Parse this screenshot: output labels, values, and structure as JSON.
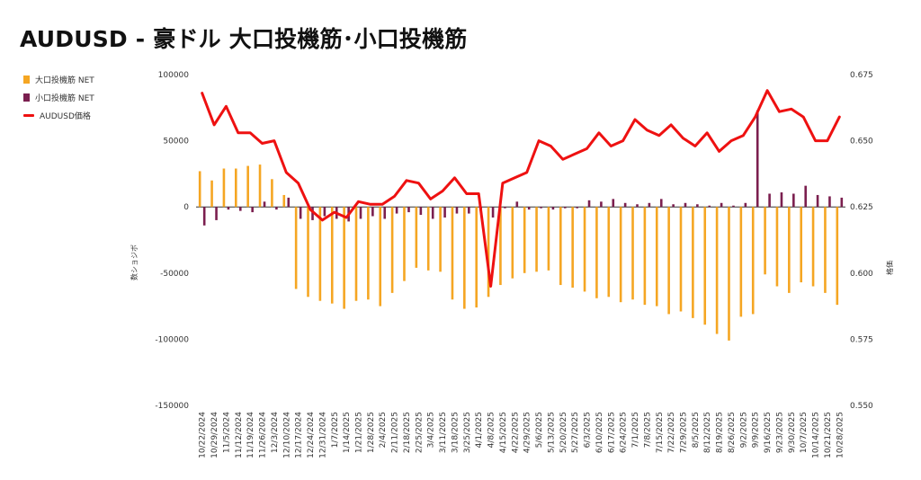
{
  "chart_data": {
    "type": "bar",
    "title": "AUDUSD - 豪ドル 大口投機筋･小口投機筋",
    "ylabel_left": "数ショジボ",
    "ylabel_right": "格価",
    "ylim_left": [
      -150000,
      100000
    ],
    "ylim_right": [
      0.55,
      0.675
    ],
    "yticks_left": [
      "100000",
      "50000",
      "0",
      "-50000",
      "-100000",
      "-150000"
    ],
    "yticks_right": [
      "0.675",
      "0.650",
      "0.625",
      "0.600",
      "0.575",
      "0.550"
    ],
    "legend_position": "top-left",
    "grid": false,
    "colors": {
      "large": "#f5a623",
      "small": "#7b1f4f",
      "price": "#ee1111"
    },
    "categories": [
      "10/22/2024",
      "10/29/2024",
      "11/5/2024",
      "11/12/2024",
      "11/19/2024",
      "11/26/2024",
      "12/3/2024",
      "12/10/2024",
      "12/17/2024",
      "12/24/2024",
      "12/31/2024",
      "1/7/2025",
      "1/14/2025",
      "1/21/2025",
      "1/28/2025",
      "2/4/2025",
      "2/11/2025",
      "2/18/2025",
      "2/25/2025",
      "3/4/2025",
      "3/11/2025",
      "3/18/2025",
      "3/25/2025",
      "4/1/2025",
      "4/8/2025",
      "4/15/2025",
      "4/22/2025",
      "4/29/2025",
      "5/6/2025",
      "5/13/2025",
      "5/20/2025",
      "5/27/2025",
      "6/3/2025",
      "6/10/2025",
      "6/17/2025",
      "6/24/2025",
      "7/1/2025",
      "7/8/2025",
      "7/15/2025",
      "7/22/2025",
      "7/29/2025",
      "8/5/2025",
      "8/12/2025",
      "8/19/2025",
      "8/26/2025",
      "9/2/2025",
      "9/9/2025",
      "9/16/2025",
      "9/23/2025",
      "9/30/2025",
      "10/7/2025",
      "10/14/2025",
      "10/21/2025",
      "10/28/2025"
    ],
    "series": [
      {
        "name": "大口投機筋 NET",
        "kind": "bar",
        "values": [
          27000,
          20000,
          29000,
          29000,
          31000,
          32000,
          21000,
          9000,
          -62000,
          -68000,
          -71000,
          -73000,
          -77000,
          -71000,
          -70000,
          -75000,
          -65000,
          -56000,
          -46000,
          -48000,
          -49000,
          -70000,
          -77000,
          -76000,
          -68000,
          -59000,
          -54000,
          -50000,
          -49000,
          -48000,
          -59000,
          -61000,
          -64000,
          -69000,
          -68000,
          -72000,
          -70000,
          -74000,
          -75000,
          -81000,
          -79000,
          -84000,
          -89000,
          -96000,
          -101000,
          -83000,
          -81000,
          -51000,
          -60000,
          -65000,
          -57000,
          -60000,
          -65000,
          -74000
        ]
      },
      {
        "name": "小口投機筋 NET",
        "kind": "bar",
        "values": [
          -14000,
          -10000,
          -2000,
          -3000,
          -4000,
          4000,
          -2000,
          7000,
          -9000,
          -10000,
          -7000,
          -9000,
          -11000,
          -9000,
          -7000,
          -9000,
          -5000,
          -4000,
          -6000,
          -9000,
          -8000,
          -5000,
          -5000,
          -3000,
          -8000,
          -1000,
          4000,
          -2000,
          -1000,
          -2000,
          -1000,
          -1000,
          5000,
          4000,
          6000,
          3000,
          2000,
          3000,
          6000,
          2000,
          3000,
          2000,
          1000,
          3000,
          1000,
          3000,
          73000,
          10000,
          11000,
          10000,
          16000,
          9000,
          8000,
          7000
        ]
      },
      {
        "name": "AUDUSD価格",
        "kind": "line",
        "values": [
          0.668,
          0.656,
          0.663,
          0.653,
          0.653,
          0.649,
          0.65,
          0.638,
          0.634,
          0.624,
          0.62,
          0.623,
          0.621,
          0.627,
          0.626,
          0.626,
          0.629,
          0.635,
          0.634,
          0.628,
          0.631,
          0.636,
          0.63,
          0.63,
          0.595,
          0.634,
          0.636,
          0.638,
          0.65,
          0.648,
          0.643,
          0.645,
          0.647,
          0.653,
          0.648,
          0.65,
          0.658,
          0.654,
          0.652,
          0.656,
          0.651,
          0.648,
          0.653,
          0.646,
          0.65,
          0.652,
          0.659,
          0.669,
          0.661,
          0.662,
          0.659,
          0.65,
          0.65,
          0.659
        ]
      }
    ]
  }
}
